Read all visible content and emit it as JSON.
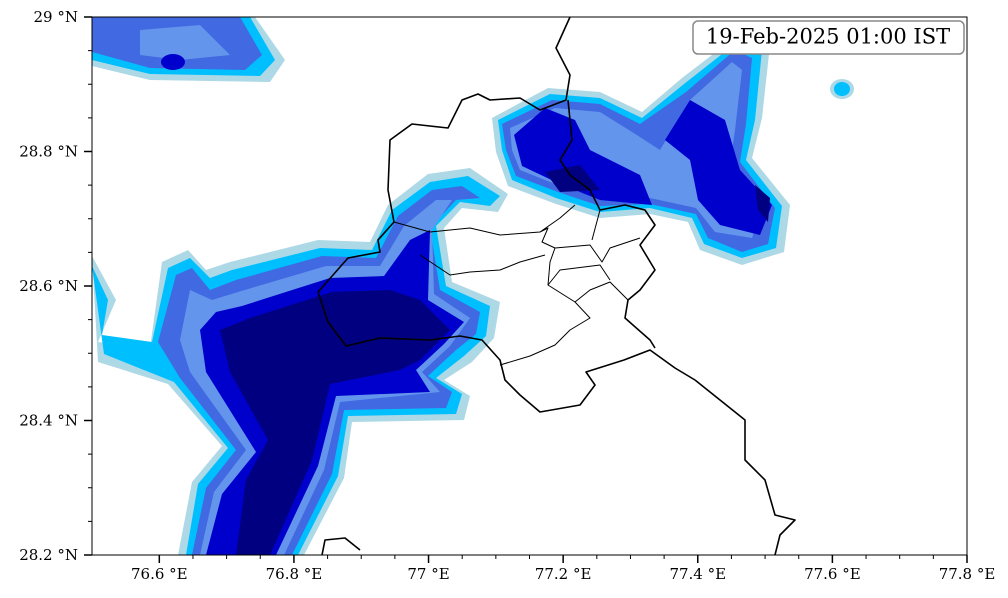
{
  "map": {
    "timestamp": "19-Feb-2025 01:00 IST",
    "xlim": [
      76.5,
      77.8
    ],
    "ylim": [
      28.2,
      29
    ],
    "xticks": [
      {
        "value": 76.6,
        "label": "76.6 °E"
      },
      {
        "value": 76.8,
        "label": "76.8 °E"
      },
      {
        "value": 77,
        "label": "77 °E"
      },
      {
        "value": 77.2,
        "label": "77.2 °E"
      },
      {
        "value": 77.4,
        "label": "77.4 °E"
      },
      {
        "value": 77.6,
        "label": "77.6 °E"
      },
      {
        "value": 77.8,
        "label": "77.8 °E"
      }
    ],
    "yticks": [
      {
        "value": 28.2,
        "label": "28.2 °N"
      },
      {
        "value": 28.4,
        "label": "28.4 °N"
      },
      {
        "value": 28.6,
        "label": "28.6 °N"
      },
      {
        "value": 28.8,
        "label": "28.8 °N"
      },
      {
        "value": 29,
        "label": "29 °N"
      }
    ]
  }
}
